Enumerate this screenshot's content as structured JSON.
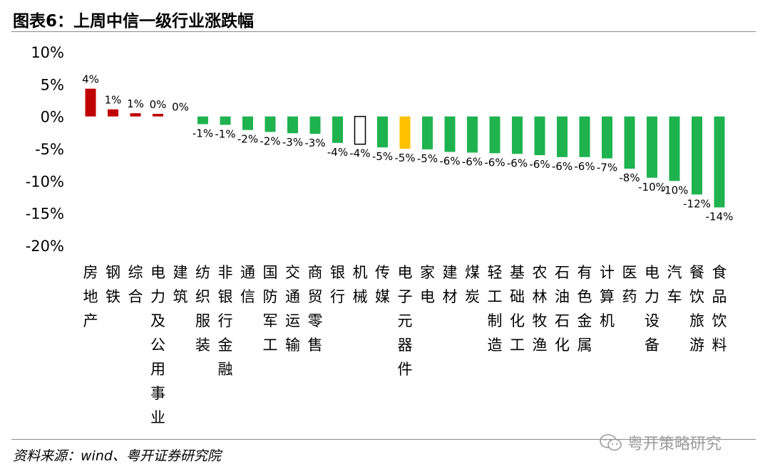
{
  "title": "图表6：上周中信一级行业涨跌幅",
  "source": "资料来源：wind、粤开证券研究院",
  "watermark": "粤开策略研究",
  "icons": {
    "watermark": "wechat-icon"
  },
  "colors": {
    "up": "#c00000",
    "down": "#1fb34f",
    "highlight": "#ffc000",
    "outline": "#000000"
  },
  "chart_data": {
    "type": "bar",
    "title": "",
    "xlabel": "",
    "ylabel": "",
    "ylim": [
      -20,
      10
    ],
    "yticks": [
      "10%",
      "5%",
      "0%",
      "-5%",
      "-10%",
      "-15%",
      "-20%"
    ],
    "grid": false,
    "legend": "none",
    "categories": [
      "房地产",
      "钢铁",
      "综合",
      "电力及公用事业",
      "建筑",
      "纺织服装",
      "非银行金融",
      "通信",
      "国防军工",
      "交通运输",
      "商贸零售",
      "银行",
      "机械",
      "传媒",
      "电子元器件",
      "家电",
      "建材",
      "煤炭",
      "轻工制造",
      "基础化工",
      "农林牧渔",
      "石油石化",
      "有色金属",
      "计算机",
      "医药",
      "电力设备",
      "汽车",
      "餐饮旅游",
      "食品饮料"
    ],
    "values": [
      4.3,
      1.1,
      0.5,
      0.4,
      0.0,
      -1.2,
      -1.3,
      -2.1,
      -2.4,
      -2.6,
      -2.7,
      -4.1,
      -4.3,
      -4.8,
      -5.0,
      -5.1,
      -5.5,
      -5.6,
      -5.7,
      -5.8,
      -6.0,
      -6.3,
      -6.3,
      -6.5,
      -8.1,
      -9.5,
      -10.0,
      -12.1,
      -14.1
    ],
    "data_labels": [
      "4%",
      "1%",
      "1%",
      "0%",
      "0%",
      "-1%",
      "-1%",
      "-2%",
      "-2%",
      "-3%",
      "-3%",
      "-4%",
      "-4%",
      "-5%",
      "-5%",
      "-5%",
      "-6%",
      "-6%",
      "-6%",
      "-6%",
      "-6%",
      "-6%",
      "-6%",
      "-7%",
      "-8%",
      "-10%",
      "-10%",
      "-12%",
      "-14%"
    ],
    "highlight": {
      "outlined": "机械",
      "yellow": "电子元器件"
    }
  }
}
